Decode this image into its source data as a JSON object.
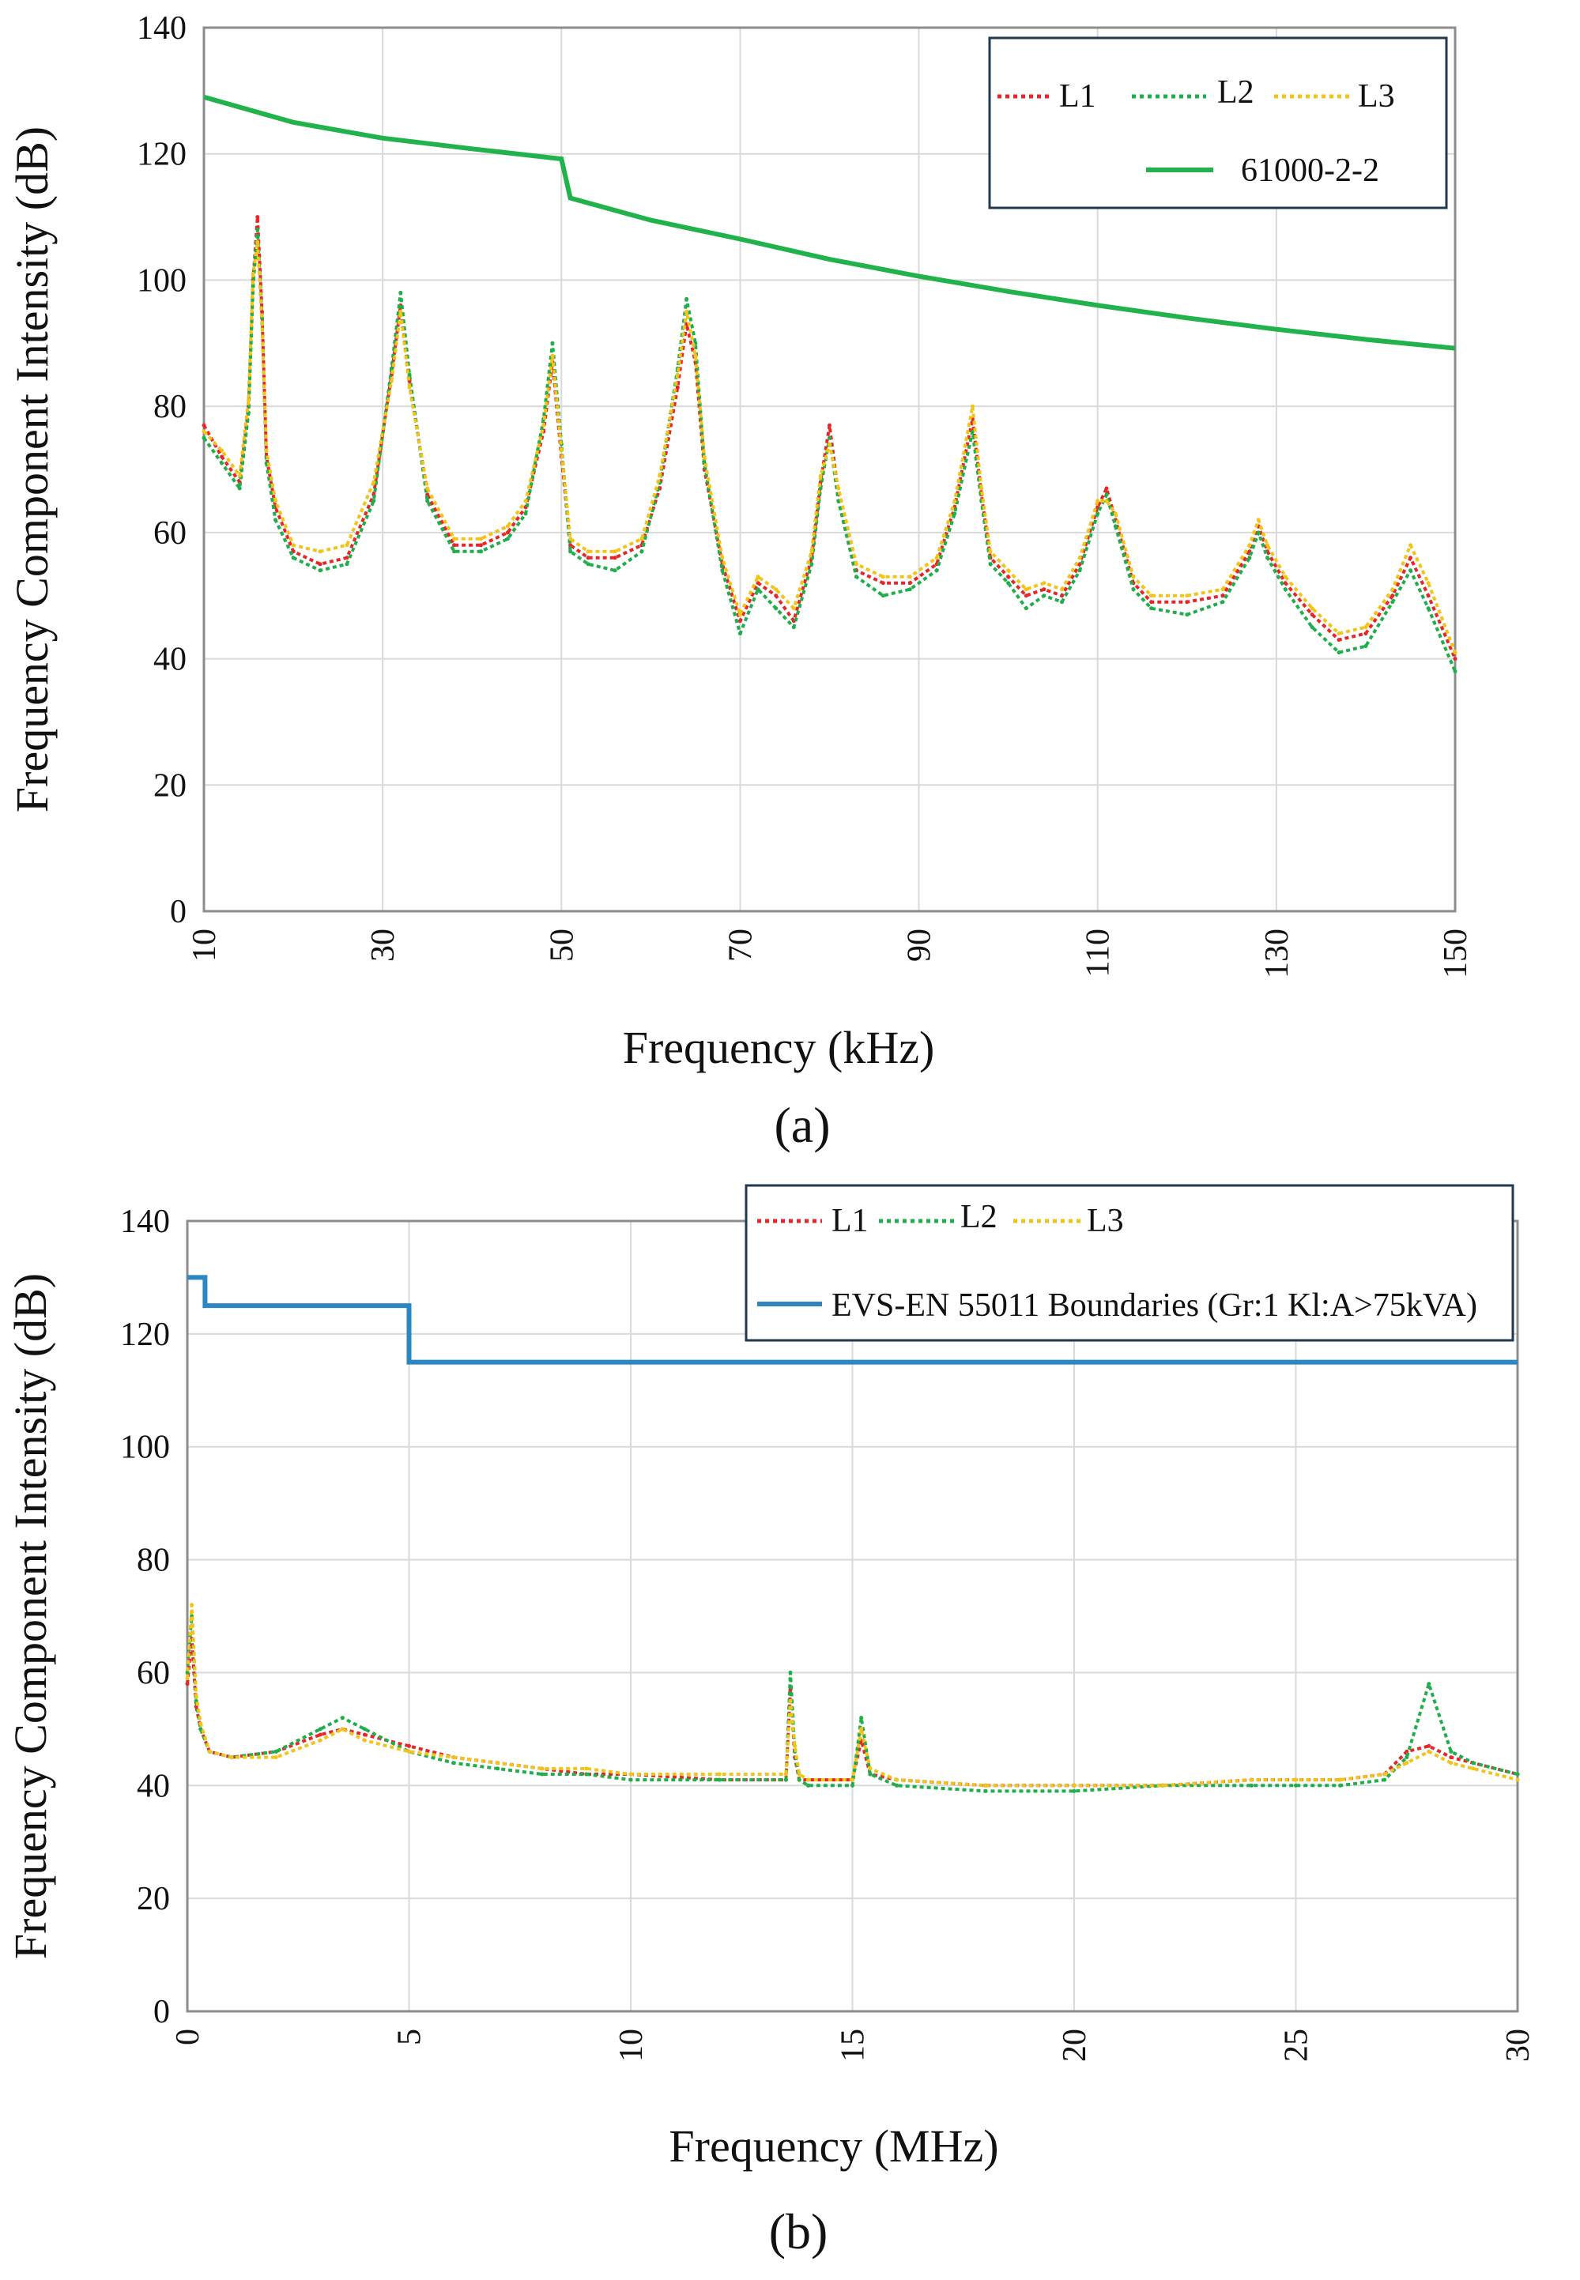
{
  "chart_data": [
    {
      "id": "a",
      "type": "line",
      "caption": "(a)",
      "xlabel": "Frequency (kHz)",
      "ylabel": "Frequency Component Intensity (dB)",
      "xlim": [
        10,
        150
      ],
      "ylim": [
        0,
        140
      ],
      "xticks": [
        "10",
        "30",
        "50",
        "70",
        "90",
        "110",
        "130",
        "150"
      ],
      "yticks": [
        "0",
        "20",
        "40",
        "60",
        "80",
        "100",
        "120",
        "140"
      ],
      "grid": true,
      "legend": {
        "placement": "top-right",
        "entries": [
          {
            "name": "L1",
            "color": "#e8262a",
            "style": "dotted"
          },
          {
            "name": "L2",
            "color": "#1fae4b",
            "style": "dotted"
          },
          {
            "name": "L3",
            "color": "#f2c419",
            "style": "dotted"
          },
          {
            "name": "61000-2-2",
            "color": "#22b24c",
            "style": "solid"
          }
        ]
      },
      "limit": {
        "name": "61000-2-2",
        "color": "#22b24c",
        "x": [
          10,
          20,
          30,
          40,
          50,
          51,
          60,
          70,
          80,
          90,
          100,
          110,
          120,
          130,
          140,
          150
        ],
        "y": [
          129,
          125,
          122.5,
          120.8,
          119.2,
          113,
          109.5,
          106.5,
          103.3,
          100.6,
          98.2,
          96,
          94,
          92.2,
          90.6,
          89.2
        ]
      },
      "series": [
        {
          "name": "L1",
          "color": "#e8262a",
          "x": [
            10,
            12,
            14,
            15,
            15.5,
            16,
            16.5,
            17,
            18,
            20,
            23,
            26,
            29,
            31,
            32,
            33,
            35,
            38,
            41,
            44,
            46,
            48,
            49,
            50,
            51,
            53,
            56,
            59,
            61,
            63,
            64,
            65,
            66,
            68,
            70,
            72,
            74,
            76,
            78,
            79,
            80,
            81,
            83,
            86,
            89,
            92,
            94,
            96,
            97,
            98,
            100,
            102,
            104,
            106,
            108,
            110,
            111,
            112,
            114,
            116,
            120,
            124,
            127,
            128,
            129,
            131,
            134,
            137,
            140,
            143,
            145,
            147,
            150
          ],
          "y": [
            77,
            72,
            68,
            80,
            100,
            110,
            95,
            72,
            64,
            57,
            55,
            56,
            66,
            85,
            96,
            84,
            66,
            58,
            58,
            60,
            64,
            76,
            87,
            72,
            58,
            56,
            56,
            58,
            67,
            83,
            93,
            87,
            70,
            55,
            46,
            52,
            50,
            46,
            56,
            68,
            77,
            66,
            54,
            52,
            52,
            55,
            64,
            78,
            66,
            56,
            53,
            50,
            51,
            50,
            55,
            64,
            67,
            62,
            52,
            49,
            49,
            50,
            57,
            61,
            57,
            52,
            47,
            43,
            44,
            50,
            56,
            50,
            40
          ]
        },
        {
          "name": "L2",
          "color": "#1fae4b",
          "x": [
            10,
            12,
            14,
            15,
            15.5,
            16,
            16.5,
            17,
            18,
            20,
            23,
            26,
            29,
            31,
            32,
            33,
            35,
            38,
            41,
            44,
            46,
            48,
            49,
            50,
            51,
            53,
            56,
            59,
            61,
            63,
            64,
            65,
            66,
            68,
            70,
            72,
            74,
            76,
            78,
            79,
            80,
            81,
            83,
            86,
            89,
            92,
            94,
            96,
            97,
            98,
            100,
            102,
            104,
            106,
            108,
            110,
            111,
            112,
            114,
            116,
            120,
            124,
            127,
            128,
            129,
            131,
            134,
            137,
            140,
            143,
            145,
            147,
            150
          ],
          "y": [
            75,
            71,
            67,
            79,
            99,
            108,
            94,
            71,
            62,
            56,
            54,
            55,
            65,
            86,
            98,
            85,
            65,
            57,
            57,
            59,
            63,
            78,
            90,
            74,
            57,
            55,
            54,
            57,
            68,
            86,
            97,
            90,
            71,
            54,
            44,
            51,
            48,
            45,
            55,
            67,
            75,
            65,
            53,
            50,
            51,
            54,
            63,
            76,
            65,
            55,
            52,
            48,
            50,
            49,
            54,
            63,
            66,
            61,
            51,
            48,
            47,
            49,
            56,
            60,
            56,
            51,
            45,
            41,
            42,
            49,
            54,
            48,
            38
          ]
        },
        {
          "name": "L3",
          "color": "#f2c419",
          "x": [
            10,
            12,
            14,
            15,
            15.5,
            16,
            16.5,
            17,
            18,
            20,
            23,
            26,
            29,
            31,
            32,
            33,
            35,
            38,
            41,
            44,
            46,
            48,
            49,
            50,
            51,
            53,
            56,
            59,
            61,
            63,
            64,
            65,
            66,
            68,
            70,
            72,
            74,
            76,
            78,
            79,
            80,
            81,
            83,
            86,
            89,
            92,
            94,
            96,
            97,
            98,
            100,
            102,
            104,
            106,
            108,
            110,
            111,
            112,
            114,
            116,
            120,
            124,
            127,
            128,
            129,
            131,
            134,
            137,
            140,
            143,
            145,
            147,
            150
          ],
          "y": [
            76,
            73,
            69,
            81,
            101,
            106,
            93,
            73,
            65,
            58,
            57,
            58,
            68,
            84,
            95,
            83,
            67,
            59,
            59,
            61,
            65,
            77,
            88,
            73,
            59,
            57,
            57,
            59,
            69,
            85,
            95,
            88,
            72,
            56,
            47,
            53,
            51,
            48,
            57,
            69,
            74,
            67,
            55,
            53,
            53,
            56,
            65,
            80,
            67,
            57,
            54,
            51,
            52,
            51,
            56,
            65,
            65,
            63,
            53,
            50,
            50,
            51,
            58,
            62,
            58,
            53,
            48,
            44,
            45,
            51,
            58,
            52,
            41
          ]
        }
      ]
    },
    {
      "id": "b",
      "type": "line",
      "caption": "(b)",
      "xlabel": "Frequency (MHz)",
      "ylabel": "Frequency Component Intensity (dB)",
      "xlim": [
        0,
        30
      ],
      "ylim": [
        0,
        140
      ],
      "xticks": [
        "0",
        "5",
        "10",
        "15",
        "20",
        "25",
        "30"
      ],
      "yticks": [
        "0",
        "20",
        "40",
        "60",
        "80",
        "100",
        "120",
        "140"
      ],
      "grid": true,
      "legend": {
        "placement": "top-right",
        "entries": [
          {
            "name": "L1",
            "color": "#e8262a",
            "style": "dotted"
          },
          {
            "name": "L2",
            "color": "#1fae4b",
            "style": "dotted"
          },
          {
            "name": "L3",
            "color": "#f2c419",
            "style": "dotted"
          },
          {
            "name": "EVS-EN 55011 Boundaries (Gr:1 Kl:A>75kVA)",
            "color": "#2b86c2",
            "style": "solid"
          }
        ]
      },
      "limit": {
        "name": "EVS-EN 55011 Boundaries (Gr:1 Kl:A>75kVA)",
        "color": "#2b86c2",
        "x": [
          0,
          0.4,
          0.4,
          5,
          5,
          30
        ],
        "y": [
          130,
          130,
          125,
          125,
          115,
          115
        ]
      },
      "series": [
        {
          "name": "L1",
          "color": "#e8262a",
          "x": [
            0,
            0.1,
            0.2,
            0.3,
            0.5,
            1,
            2,
            3,
            3.5,
            4,
            5,
            6,
            7,
            8,
            9,
            10,
            12,
            13.5,
            13.6,
            13.7,
            13.8,
            14,
            15,
            15.2,
            15.4,
            16,
            18,
            20,
            22,
            24,
            25,
            26,
            27,
            27.5,
            28,
            28.5,
            29,
            30
          ],
          "y": [
            58,
            66,
            54,
            50,
            46,
            45,
            46,
            49,
            50,
            49,
            47,
            45,
            44,
            43,
            42,
            42,
            41,
            41,
            57,
            45,
            41,
            41,
            41,
            48,
            42,
            41,
            40,
            40,
            40,
            41,
            41,
            41,
            42,
            46,
            47,
            45,
            44,
            42
          ]
        },
        {
          "name": "L2",
          "color": "#1fae4b",
          "x": [
            0,
            0.1,
            0.2,
            0.3,
            0.5,
            1,
            2,
            3,
            3.5,
            4,
            5,
            6,
            7,
            8,
            9,
            10,
            12,
            13.5,
            13.6,
            13.7,
            13.8,
            14,
            15,
            15.2,
            15.4,
            16,
            18,
            20,
            22,
            24,
            25,
            26,
            27,
            27.5,
            28,
            28.5,
            29,
            30
          ],
          "y": [
            60,
            70,
            55,
            50,
            46,
            45,
            46,
            50,
            52,
            50,
            46,
            44,
            43,
            42,
            42,
            41,
            41,
            41,
            60,
            46,
            41,
            40,
            40,
            52,
            42,
            40,
            39,
            39,
            40,
            40,
            40,
            40,
            41,
            45,
            58,
            46,
            44,
            42
          ]
        },
        {
          "name": "L3",
          "color": "#f2c419",
          "x": [
            0,
            0.1,
            0.2,
            0.3,
            0.5,
            1,
            2,
            3,
            3.5,
            4,
            5,
            6,
            7,
            8,
            9,
            10,
            12,
            13.5,
            13.6,
            13.7,
            13.8,
            14,
            15,
            15.2,
            15.4,
            16,
            18,
            20,
            22,
            24,
            25,
            26,
            27,
            27.5,
            28,
            28.5,
            29,
            30
          ],
          "y": [
            59,
            72,
            56,
            51,
            46,
            45,
            45,
            48,
            50,
            48,
            46,
            45,
            44,
            43,
            43,
            42,
            42,
            42,
            55,
            47,
            42,
            41,
            41,
            50,
            43,
            41,
            40,
            40,
            40,
            41,
            41,
            41,
            42,
            44,
            46,
            44,
            43,
            41
          ]
        }
      ]
    }
  ]
}
